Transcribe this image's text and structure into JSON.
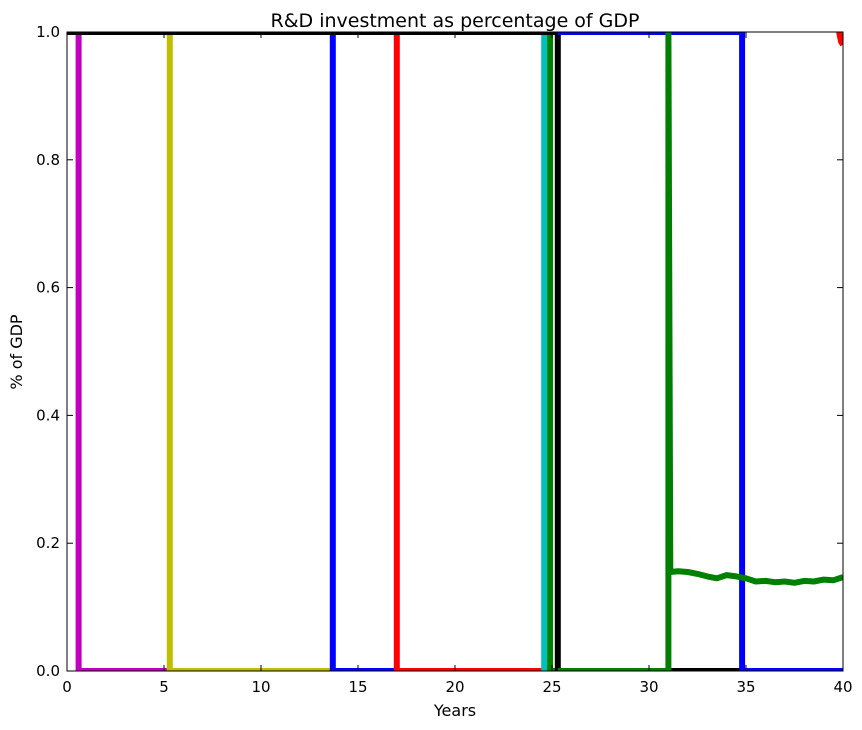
{
  "chart_data": {
    "type": "line",
    "title": "R&D investment as percentage of  GDP",
    "xlabel": "Years",
    "ylabel": "% of GDP",
    "xlim": [
      0,
      40
    ],
    "ylim": [
      0,
      1.0
    ],
    "x_ticks": [
      "0",
      "5",
      "10",
      "15",
      "20",
      "25",
      "30",
      "35",
      "40"
    ],
    "y_ticks": [
      "0.0",
      "0.2",
      "0.4",
      "0.6",
      "0.8",
      "1.0"
    ],
    "grid": false,
    "legend": "none",
    "series": [
      {
        "color": "#bf00bf",
        "x": [
          0,
          0.6,
          0.6,
          5.3
        ],
        "y": [
          1.0,
          1.0,
          0.0,
          0.0
        ]
      },
      {
        "color": "#bfbf00",
        "x": [
          0,
          5.3,
          5.3,
          13.7
        ],
        "y": [
          1.0,
          1.0,
          0.0,
          0.0
        ]
      },
      {
        "color": "#0000ff",
        "x": [
          0,
          13.7,
          13.7,
          25.2
        ],
        "y": [
          1.0,
          1.0,
          0.0,
          0.0
        ]
      },
      {
        "color": "#ff0000",
        "x": [
          0,
          17.0,
          17.0,
          25.2
        ],
        "y": [
          1.0,
          1.0,
          0.0,
          0.0
        ]
      },
      {
        "color": "#00bfbf",
        "x": [
          0,
          24.6,
          24.6,
          25.2
        ],
        "y": [
          1.0,
          1.0,
          0.0,
          0.0
        ]
      },
      {
        "color": "#008000",
        "x": [
          0,
          24.9,
          24.9,
          25.2
        ],
        "y": [
          1.0,
          1.0,
          0.0,
          0.0
        ]
      },
      {
        "color": "#000000",
        "x": [
          0,
          25.3,
          25.3,
          40
        ],
        "y": [
          1.0,
          1.0,
          0.0,
          0.0
        ]
      },
      {
        "color": "#0000ff",
        "x": [
          25.3,
          34.8,
          34.8,
          40
        ],
        "y": [
          1.0,
          1.0,
          0.0,
          0.0
        ]
      },
      {
        "color": "#008000",
        "x": [
          25.3,
          31.0,
          31.0,
          31.1,
          31.5,
          32.0,
          32.5,
          33.0,
          33.5,
          34.0,
          34.5,
          35.0,
          35.5,
          36.0,
          36.5,
          37.0,
          37.5,
          38.0,
          38.5,
          39.0,
          39.5,
          40.0
        ],
        "y": [
          0.0,
          0.0,
          1.0,
          0.155,
          0.156,
          0.155,
          0.152,
          0.148,
          0.145,
          0.15,
          0.148,
          0.145,
          0.14,
          0.141,
          0.139,
          0.14,
          0.138,
          0.141,
          0.14,
          0.143,
          0.142,
          0.147
        ]
      },
      {
        "color": "#ff0000",
        "x": [
          39.7,
          39.8,
          39.9,
          40.0
        ],
        "y": [
          1.0,
          1.0,
          0.985,
          0.98
        ]
      }
    ]
  }
}
